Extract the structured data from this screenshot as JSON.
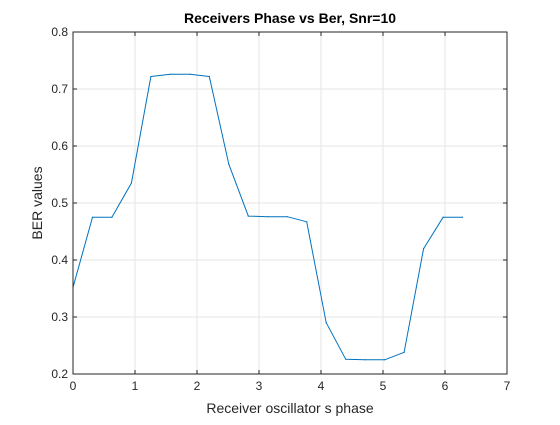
{
  "chart_data": {
    "type": "line",
    "title": "Receivers Phase vs Ber, Snr=10",
    "xlabel": "Receiver oscillator s phase",
    "ylabel": "BER values",
    "xlim": [
      0,
      7
    ],
    "ylim": [
      0.2,
      0.8
    ],
    "xticks": [
      0,
      1,
      2,
      3,
      4,
      5,
      6,
      7
    ],
    "yticks": [
      0.2,
      0.3,
      0.4,
      0.5,
      0.6,
      0.7,
      0.8
    ],
    "xtick_labels": [
      "0",
      "1",
      "2",
      "3",
      "4",
      "5",
      "6",
      "7"
    ],
    "ytick_labels": [
      "0.2",
      "0.3",
      "0.4",
      "0.5",
      "0.6",
      "0.7",
      "0.8"
    ],
    "grid": true,
    "series": [
      {
        "color": "#0072bd",
        "x": [
          0,
          0.314,
          0.628,
          0.942,
          1.257,
          1.571,
          1.885,
          2.199,
          2.513,
          2.827,
          3.142,
          3.456,
          3.77,
          4.084,
          4.398,
          4.712,
          5.027,
          5.341,
          5.655,
          5.969,
          6.283
        ],
        "y": [
          0.352,
          0.475,
          0.475,
          0.535,
          0.722,
          0.726,
          0.726,
          0.722,
          0.568,
          0.477,
          0.476,
          0.476,
          0.467,
          0.29,
          0.226,
          0.225,
          0.225,
          0.238,
          0.42,
          0.475,
          0.475
        ]
      }
    ]
  }
}
